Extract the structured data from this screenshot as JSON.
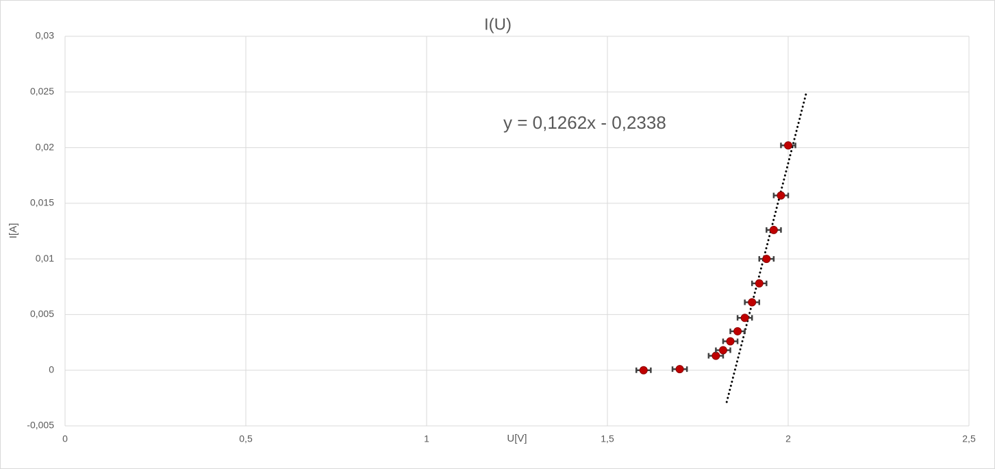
{
  "chart_data": {
    "type": "scatter",
    "title": "I(U)",
    "x_label": "U[V]",
    "y_label": "I[A]",
    "x": [
      1.6,
      1.7,
      1.8,
      1.82,
      1.84,
      1.86,
      1.88,
      1.9,
      1.92,
      1.94,
      1.96,
      1.98,
      2.0
    ],
    "values": [
      0,
      0.0001,
      0.0013,
      0.0018,
      0.0026,
      0.0035,
      0.0047,
      0.0061,
      0.0078,
      0.01,
      0.0126,
      0.0157,
      0.0202
    ],
    "x_error": 0.02,
    "color": "#c00000",
    "error_color": "#404040",
    "trendline": {
      "label": "y = 0,1262x - 0,2338",
      "slope": 0.1262,
      "intercept": -0.2338,
      "x_range": [
        1.83,
        2.05
      ],
      "color": "#000000"
    },
    "xlim": [
      0,
      2.5
    ],
    "xticks": [
      0,
      {
        "value": 0.5,
        "label": "0,5"
      },
      1,
      {
        "value": 1.5,
        "label": "1,5"
      },
      2,
      {
        "value": 2.5,
        "label": "2,5"
      }
    ],
    "ylim": [
      -0.005,
      0.03
    ],
    "yticks": [
      {
        "value": -0.005,
        "label": "-0,005"
      },
      0,
      {
        "value": 0.005,
        "label": "0,005"
      },
      {
        "value": 0.01,
        "label": "0,01"
      },
      {
        "value": 0.015,
        "label": "0,015"
      },
      {
        "value": 0.02,
        "label": "0,02"
      },
      {
        "value": 0.025,
        "label": "0,025"
      },
      {
        "value": 0.03,
        "label": "0,03"
      }
    ],
    "grid": true
  }
}
